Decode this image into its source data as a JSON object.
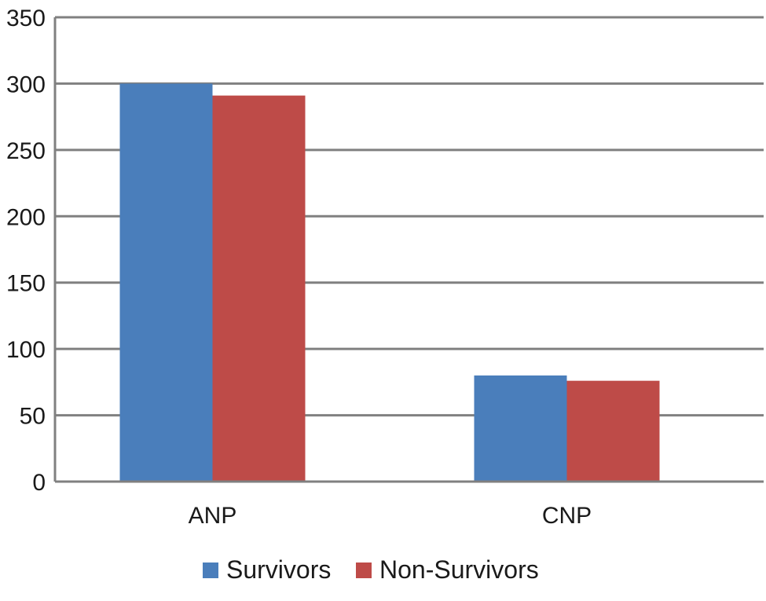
{
  "chart_data": {
    "type": "bar",
    "title": "",
    "xlabel": "",
    "ylabel": "",
    "categories": [
      "ANP",
      "CNP"
    ],
    "series": [
      {
        "name": "Survivors",
        "color": "#4a7ebb",
        "values": [
          300,
          80
        ]
      },
      {
        "name": "Non-Survivors",
        "color": "#be4b48",
        "values": [
          291,
          76
        ]
      }
    ],
    "ylim": [
      0,
      350
    ],
    "yticks": [
      0,
      50,
      100,
      150,
      200,
      250,
      300,
      350
    ],
    "grid": true,
    "legend_position": "bottom-center",
    "gridline_color": "#808080"
  }
}
